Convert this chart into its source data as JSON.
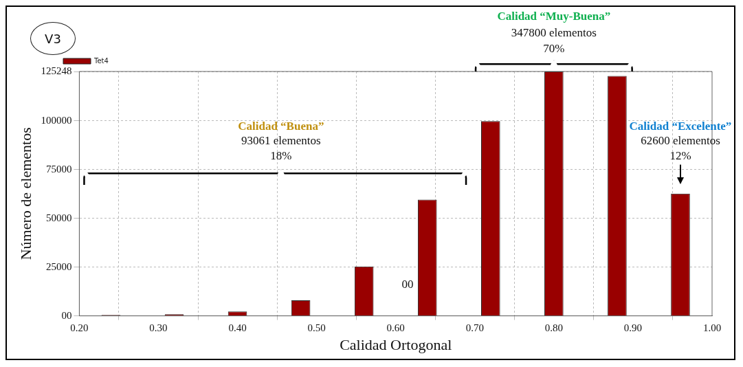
{
  "chart_data": {
    "type": "bar",
    "title": "V3",
    "xlabel": "Calidad Ortogonal",
    "ylabel": "Número de elementos",
    "x": [
      0.24,
      0.32,
      0.4,
      0.48,
      0.56,
      0.64,
      0.72,
      0.8,
      0.88,
      0.96
    ],
    "series": [
      {
        "name": "Tet4",
        "color": "#990000",
        "values": [
          500,
          800,
          2200,
          8000,
          25300,
          59600,
          99800,
          125248,
          123000,
          62600
        ]
      }
    ],
    "xlim": [
      0.2,
      1.0
    ],
    "xticks": [
      {
        "value": 0.2,
        "label": "0.20"
      },
      {
        "value": 0.3,
        "label": "0.30"
      },
      {
        "value": 0.4,
        "label": "0.40"
      },
      {
        "value": 0.5,
        "label": "0.50"
      },
      {
        "value": 0.6,
        "label": "0.60"
      },
      {
        "value": 0.7,
        "label": "0.70"
      },
      {
        "value": 0.8,
        "label": "0.80"
      },
      {
        "value": 0.9,
        "label": "0.90"
      },
      {
        "value": 1.0,
        "label": "1.00"
      }
    ],
    "ylim": [
      0,
      125248
    ],
    "yticks": [
      {
        "value": 0,
        "label": "00"
      },
      25000,
      50000,
      75000,
      100000,
      125248
    ],
    "grid": true,
    "legend": "top left",
    "annotations": [
      "Calidad “Buena”",
      "93061 elementos",
      "18%",
      "Calidad “Muy-Buena”",
      "347800 elementos",
      "70%",
      "Calidad “Excelente”",
      "62600 elementos",
      "12%",
      "00"
    ]
  }
}
